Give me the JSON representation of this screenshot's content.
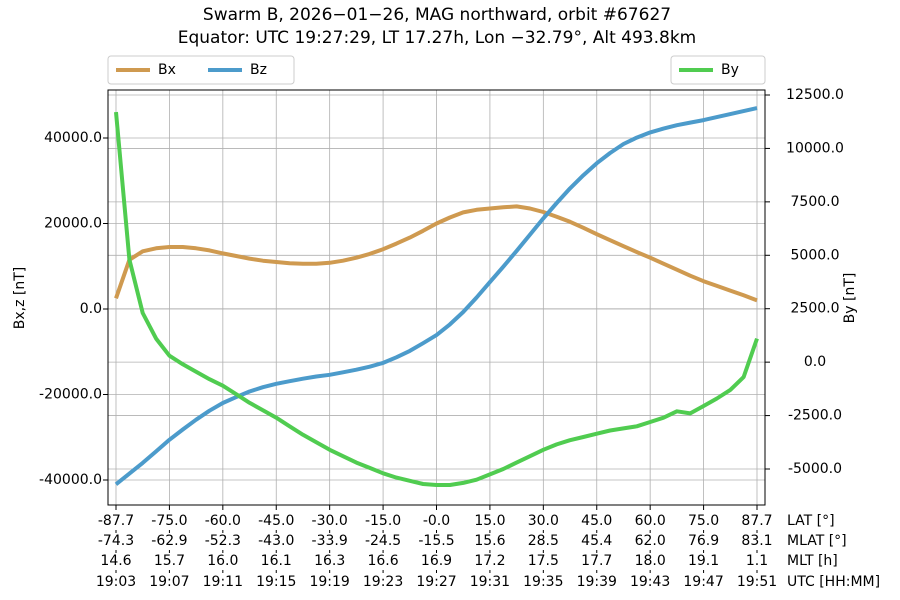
{
  "chart_data": {
    "type": "line",
    "title": "Swarm B, 2026−01−26, MAG northward, orbit #67627",
    "subtitle": "Equator: UTC 19:27:29, LT 17.27h, Lon −32.79°, Alt 493.8km",
    "ylabel": "Bx,z [nT]",
    "y2label": "By [nT]",
    "xlabel": "UTC [HH:MM]",
    "x": [
      "19:03",
      "19:04",
      "19:05",
      "19:06",
      "19:07",
      "19:08",
      "19:09",
      "19:10",
      "19:11",
      "19:12",
      "19:13",
      "19:14",
      "19:15",
      "19:16",
      "19:17",
      "19:18",
      "19:19",
      "19:20",
      "19:21",
      "19:22",
      "19:23",
      "19:24",
      "19:25",
      "19:26",
      "19:27",
      "19:28",
      "19:29",
      "19:30",
      "19:31",
      "19:32",
      "19:33",
      "19:34",
      "19:35",
      "19:36",
      "19:37",
      "19:38",
      "19:39",
      "19:40",
      "19:41",
      "19:42",
      "19:43",
      "19:44",
      "19:45",
      "19:46",
      "19:47",
      "19:48",
      "19:49",
      "19:50",
      "19:51"
    ],
    "xticks": [
      "19:03",
      "19:07",
      "19:11",
      "19:15",
      "19:19",
      "19:23",
      "19:27",
      "19:31",
      "19:35",
      "19:39",
      "19:43",
      "19:47",
      "19:51"
    ],
    "x_rows": [
      {
        "label": "LAT [°]",
        "ticks": [
          "-87.7",
          "-75.0",
          "-60.0",
          "-45.0",
          "-30.0",
          "-15.0",
          "-0.0",
          "15.0",
          "30.0",
          "45.0",
          "60.0",
          "75.0",
          "87.7"
        ]
      },
      {
        "label": "MLAT [°]",
        "ticks": [
          "-74.3",
          "-62.9",
          "-52.3",
          "-43.0",
          "-33.9",
          "-24.5",
          "-15.5",
          "15.6",
          "28.5",
          "45.4",
          "62.0",
          "76.9",
          "83.1"
        ]
      },
      {
        "label": "MLT [h]",
        "ticks": [
          "14.6",
          "15.7",
          "16.0",
          "16.1",
          "16.3",
          "16.6",
          "16.9",
          "17.2",
          "17.5",
          "17.7",
          "18.0",
          "19.1",
          "1.1"
        ]
      }
    ],
    "ylim": [
      -45850,
      51230
    ],
    "yticks": [
      {
        "value": -40000,
        "label": "-40000.0"
      },
      {
        "value": -20000,
        "label": "-20000.0"
      },
      {
        "value": 0,
        "label": "0.0"
      },
      {
        "value": 20000,
        "label": "20000.0"
      },
      {
        "value": 40000,
        "label": "40000.0"
      }
    ],
    "y2lim": [
      -6684,
      12734
    ],
    "y2ticks": [
      {
        "value": -5000,
        "label": "-5000.0"
      },
      {
        "value": -2500,
        "label": "-2500.0"
      },
      {
        "value": 0,
        "label": "0.0"
      },
      {
        "value": 2500,
        "label": "2500.0"
      },
      {
        "value": 5000,
        "label": "5000.0"
      },
      {
        "value": 7500,
        "label": "7500.0"
      },
      {
        "value": 10000,
        "label": "10000.0"
      },
      {
        "value": 12500,
        "label": "12500.0"
      }
    ],
    "grid": true,
    "legend": "upper left",
    "legend2": "upper right",
    "series": [
      {
        "name": "Bx",
        "color": "#cf9a50",
        "values": [
          2500,
          11500,
          13500,
          14200,
          14500,
          14500,
          14200,
          13700,
          13000,
          12400,
          11800,
          11300,
          11000,
          10700,
          10600,
          10600,
          10800,
          11300,
          12000,
          12900,
          14000,
          15300,
          16700,
          18300,
          20000,
          21400,
          22600,
          23200,
          23500,
          23800,
          24000,
          23500,
          22700,
          21600,
          20400,
          19000,
          17500,
          16100,
          14700,
          13300,
          12000,
          10600,
          9200,
          7800,
          6500,
          5400,
          4300,
          3200,
          2000
        ]
      },
      {
        "name": "Bz",
        "color": "#4c9bcb",
        "values": [
          -41000,
          -38500,
          -36000,
          -33300,
          -30600,
          -28200,
          -25900,
          -23800,
          -22000,
          -20600,
          -19300,
          -18300,
          -17500,
          -16900,
          -16300,
          -15800,
          -15400,
          -14800,
          -14200,
          -13500,
          -12600,
          -11300,
          -9800,
          -8000,
          -6100,
          -3600,
          -700,
          2700,
          6300,
          9900,
          13600,
          17400,
          21200,
          24800,
          28200,
          31300,
          34100,
          36500,
          38600,
          40100,
          41300,
          42200,
          43000,
          43600,
          44200,
          44900,
          45600,
          46300,
          47000
        ]
      },
      {
        "name": "By",
        "color": "#50cc50",
        "axis": "y2",
        "values": [
          11700,
          4800,
          2300,
          1100,
          300,
          -100,
          -450,
          -800,
          -1100,
          -1500,
          -1900,
          -2250,
          -2600,
          -3000,
          -3400,
          -3750,
          -4100,
          -4400,
          -4700,
          -4950,
          -5200,
          -5400,
          -5550,
          -5700,
          -5750,
          -5750,
          -5650,
          -5500,
          -5250,
          -5000,
          -4700,
          -4400,
          -4100,
          -3850,
          -3650,
          -3500,
          -3350,
          -3200,
          -3100,
          -3000,
          -2800,
          -2600,
          -2300,
          -2400,
          -2050,
          -1700,
          -1300,
          -700,
          1100
        ]
      }
    ]
  }
}
